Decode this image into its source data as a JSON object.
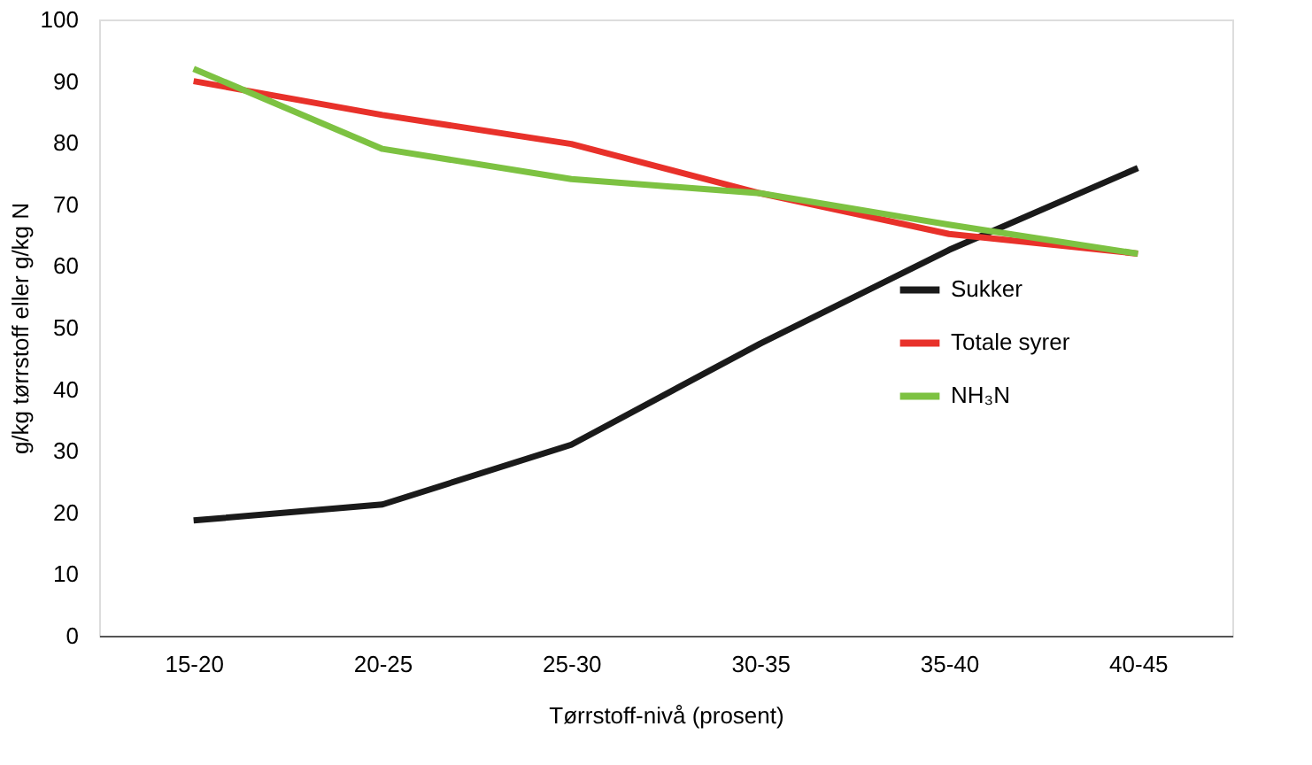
{
  "chart_data": {
    "type": "line",
    "xlabel": "Tørrstoff-nivå (prosent)",
    "ylabel": "g/kg tørrstoff eller g/kg N",
    "categories": [
      "15-20",
      "20-25",
      "25-30",
      "30-35",
      "35-40",
      "40-45"
    ],
    "series": [
      {
        "name": "Sukker",
        "color": "#1a1a1a",
        "values": [
          18.7,
          21.3,
          31,
          47.4,
          62.6,
          75.9
        ]
      },
      {
        "name": "Totale syrer",
        "color": "#e8312a",
        "values": [
          90,
          84.5,
          79.8,
          71.8,
          65.2,
          62
        ]
      },
      {
        "name": "NH₃N",
        "color": "#7dc242",
        "values": [
          92,
          79,
          74.1,
          71.8,
          66.7,
          62
        ]
      }
    ],
    "ylim": [
      0,
      100
    ],
    "yticks": [
      0,
      10,
      20,
      30,
      40,
      50,
      60,
      70,
      80,
      90,
      100
    ],
    "grid": false,
    "legend": "right",
    "marker": "none",
    "line_style": "solid"
  }
}
